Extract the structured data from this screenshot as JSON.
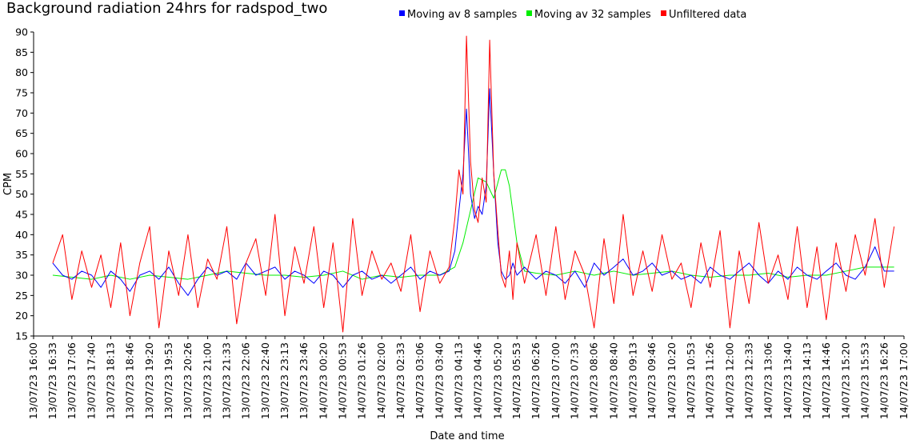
{
  "chart_data": {
    "type": "line",
    "title": "Background radiation 24hrs for radspod_two",
    "xlabel": "Date and time",
    "ylabel": "CPM",
    "ylim": [
      15,
      90
    ],
    "yticks": [
      15,
      20,
      25,
      30,
      35,
      40,
      45,
      50,
      55,
      60,
      65,
      70,
      75,
      80,
      85,
      90
    ],
    "xlim": [
      "13/07/23 16:00",
      "14/07/23 17:00"
    ],
    "xtick_labels": [
      "13/07/23 16:00",
      "13/07/23 16:33",
      "13/07/23 17:06",
      "13/07/23 17:40",
      "13/07/23 18:13",
      "13/07/23 18:46",
      "13/07/23 19:20",
      "13/07/23 19:53",
      "13/07/23 20:26",
      "13/07/23 21:00",
      "13/07/23 21:33",
      "13/07/23 22:06",
      "13/07/23 22:40",
      "13/07/23 23:13",
      "13/07/23 23:46",
      "14/07/23 00:20",
      "14/07/23 00:53",
      "14/07/23 01:26",
      "14/07/23 02:00",
      "14/07/23 02:33",
      "14/07/23 03:06",
      "14/07/23 03:40",
      "14/07/23 04:13",
      "14/07/23 04:46",
      "14/07/23 05:20",
      "14/07/23 05:53",
      "14/07/23 06:26",
      "14/07/23 07:00",
      "14/07/23 07:33",
      "14/07/23 08:06",
      "14/07/23 08:40",
      "14/07/23 09:13",
      "14/07/23 09:46",
      "14/07/23 10:20",
      "14/07/23 10:53",
      "14/07/23 11:26",
      "14/07/23 12:00",
      "14/07/23 12:33",
      "14/07/23 13:06",
      "14/07/23 13:40",
      "14/07/23 14:13",
      "14/07/23 14:46",
      "14/07/23 15:20",
      "14/07/23 15:53",
      "14/07/23 16:26",
      "14/07/23 17:00"
    ],
    "legend_position": "top",
    "grid": false,
    "series": [
      {
        "name": "Unfiltered data",
        "color": "#ff0000",
        "x": [
          "13/07/23 16:33",
          "13/07/23 16:50",
          "13/07/23 17:06",
          "13/07/23 17:23",
          "13/07/23 17:40",
          "13/07/23 17:56",
          "13/07/23 18:13",
          "13/07/23 18:30",
          "13/07/23 18:46",
          "13/07/23 19:03",
          "13/07/23 19:20",
          "13/07/23 19:36",
          "13/07/23 19:53",
          "13/07/23 20:10",
          "13/07/23 20:26",
          "13/07/23 20:43",
          "13/07/23 21:00",
          "13/07/23 21:16",
          "13/07/23 21:33",
          "13/07/23 21:50",
          "13/07/23 22:06",
          "13/07/23 22:23",
          "13/07/23 22:40",
          "13/07/23 22:56",
          "13/07/23 23:13",
          "13/07/23 23:30",
          "13/07/23 23:46",
          "14/07/23 00:03",
          "14/07/23 00:20",
          "14/07/23 00:36",
          "14/07/23 00:53",
          "14/07/23 01:10",
          "14/07/23 01:26",
          "14/07/23 01:43",
          "14/07/23 02:00",
          "14/07/23 02:16",
          "14/07/23 02:33",
          "14/07/23 02:50",
          "14/07/23 03:06",
          "14/07/23 03:23",
          "14/07/23 03:40",
          "14/07/23 03:56",
          "14/07/23 04:06",
          "14/07/23 04:13",
          "14/07/23 04:20",
          "14/07/23 04:26",
          "14/07/23 04:33",
          "14/07/23 04:40",
          "14/07/23 04:46",
          "14/07/23 04:53",
          "14/07/23 05:00",
          "14/07/23 05:06",
          "14/07/23 05:13",
          "14/07/23 05:20",
          "14/07/23 05:26",
          "14/07/23 05:33",
          "14/07/23 05:40",
          "14/07/23 05:46",
          "14/07/23 05:53",
          "14/07/23 06:06",
          "14/07/23 06:26",
          "14/07/23 06:43",
          "14/07/23 07:00",
          "14/07/23 07:16",
          "14/07/23 07:33",
          "14/07/23 07:50",
          "14/07/23 08:06",
          "14/07/23 08:23",
          "14/07/23 08:40",
          "14/07/23 08:56",
          "14/07/23 09:13",
          "14/07/23 09:30",
          "14/07/23 09:46",
          "14/07/23 10:03",
          "14/07/23 10:20",
          "14/07/23 10:36",
          "14/07/23 10:53",
          "14/07/23 11:10",
          "14/07/23 11:26",
          "14/07/23 11:43",
          "14/07/23 12:00",
          "14/07/23 12:16",
          "14/07/23 12:33",
          "14/07/23 12:50",
          "14/07/23 13:06",
          "14/07/23 13:23",
          "14/07/23 13:40",
          "14/07/23 13:56",
          "14/07/23 14:13",
          "14/07/23 14:30",
          "14/07/23 14:46",
          "14/07/23 15:03",
          "14/07/23 15:20",
          "14/07/23 15:36",
          "14/07/23 15:53",
          "14/07/23 16:10",
          "14/07/23 16:26",
          "14/07/23 16:43"
        ],
        "y": [
          33,
          40,
          24,
          36,
          27,
          35,
          22,
          38,
          20,
          33,
          42,
          17,
          36,
          25,
          40,
          22,
          34,
          29,
          42,
          18,
          33,
          39,
          25,
          45,
          20,
          37,
          28,
          42,
          22,
          38,
          16,
          44,
          25,
          36,
          29,
          33,
          26,
          40,
          21,
          36,
          28,
          32,
          44,
          56,
          50,
          89,
          58,
          46,
          43,
          54,
          48,
          88,
          55,
          41,
          30,
          27,
          36,
          24,
          38,
          28,
          40,
          25,
          42,
          24,
          36,
          30,
          17,
          39,
          23,
          45,
          25,
          36,
          26,
          40,
          29,
          33,
          22,
          38,
          27,
          41,
          17,
          36,
          23,
          43,
          28,
          35,
          24,
          42,
          22,
          37,
          19,
          38,
          26,
          40,
          30,
          44,
          27,
          42
        ]
      },
      {
        "name": "Moving av 8 samples",
        "color": "#0000ff",
        "x": [
          "13/07/23 16:33",
          "13/07/23 16:50",
          "13/07/23 17:06",
          "13/07/23 17:23",
          "13/07/23 17:40",
          "13/07/23 17:56",
          "13/07/23 18:13",
          "13/07/23 18:30",
          "13/07/23 18:46",
          "13/07/23 19:03",
          "13/07/23 19:20",
          "13/07/23 19:36",
          "13/07/23 19:53",
          "13/07/23 20:10",
          "13/07/23 20:26",
          "13/07/23 20:43",
          "13/07/23 21:00",
          "13/07/23 21:16",
          "13/07/23 21:33",
          "13/07/23 21:50",
          "13/07/23 22:06",
          "13/07/23 22:23",
          "13/07/23 22:40",
          "13/07/23 22:56",
          "13/07/23 23:13",
          "13/07/23 23:30",
          "13/07/23 23:46",
          "14/07/23 00:03",
          "14/07/23 00:20",
          "14/07/23 00:36",
          "14/07/23 00:53",
          "14/07/23 01:10",
          "14/07/23 01:26",
          "14/07/23 01:43",
          "14/07/23 02:00",
          "14/07/23 02:16",
          "14/07/23 02:33",
          "14/07/23 02:50",
          "14/07/23 03:06",
          "14/07/23 03:23",
          "14/07/23 03:40",
          "14/07/23 03:56",
          "14/07/23 04:06",
          "14/07/23 04:13",
          "14/07/23 04:20",
          "14/07/23 04:26",
          "14/07/23 04:33",
          "14/07/23 04:40",
          "14/07/23 04:46",
          "14/07/23 04:53",
          "14/07/23 05:00",
          "14/07/23 05:06",
          "14/07/23 05:13",
          "14/07/23 05:20",
          "14/07/23 05:26",
          "14/07/23 05:33",
          "14/07/23 05:40",
          "14/07/23 05:46",
          "14/07/23 05:53",
          "14/07/23 06:06",
          "14/07/23 06:26",
          "14/07/23 06:43",
          "14/07/23 07:00",
          "14/07/23 07:16",
          "14/07/23 07:33",
          "14/07/23 07:50",
          "14/07/23 08:06",
          "14/07/23 08:23",
          "14/07/23 08:40",
          "14/07/23 08:56",
          "14/07/23 09:13",
          "14/07/23 09:30",
          "14/07/23 09:46",
          "14/07/23 10:03",
          "14/07/23 10:20",
          "14/07/23 10:36",
          "14/07/23 10:53",
          "14/07/23 11:10",
          "14/07/23 11:26",
          "14/07/23 11:43",
          "14/07/23 12:00",
          "14/07/23 12:16",
          "14/07/23 12:33",
          "14/07/23 12:50",
          "14/07/23 13:06",
          "14/07/23 13:23",
          "14/07/23 13:40",
          "14/07/23 13:56",
          "14/07/23 14:13",
          "14/07/23 14:30",
          "14/07/23 14:46",
          "14/07/23 15:03",
          "14/07/23 15:20",
          "14/07/23 15:36",
          "14/07/23 15:53",
          "14/07/23 16:10",
          "14/07/23 16:26",
          "14/07/23 16:43"
        ],
        "y": [
          33,
          30,
          29,
          31,
          30,
          27,
          31,
          29,
          26,
          30,
          31,
          29,
          32,
          28,
          25,
          29,
          32,
          30,
          31,
          29,
          33,
          30,
          31,
          32,
          29,
          31,
          30,
          28,
          31,
          30,
          27,
          30,
          31,
          29,
          30,
          28,
          30,
          32,
          29,
          31,
          30,
          31,
          36,
          46,
          55,
          71,
          50,
          44,
          47,
          45,
          52,
          76,
          55,
          38,
          31,
          29,
          30,
          33,
          30,
          32,
          29,
          31,
          30,
          28,
          31,
          27,
          33,
          30,
          32,
          34,
          30,
          31,
          33,
          30,
          31,
          29,
          30,
          28,
          32,
          30,
          29,
          31,
          33,
          30,
          28,
          31,
          29,
          32,
          30,
          29,
          31,
          33,
          30,
          29,
          32,
          37,
          31,
          31
        ]
      },
      {
        "name": "Moving av 32 samples",
        "color": "#00ee00",
        "x": [
          "13/07/23 16:33",
          "13/07/23 17:06",
          "13/07/23 17:40",
          "13/07/23 18:13",
          "13/07/23 18:46",
          "13/07/23 19:20",
          "13/07/23 19:53",
          "13/07/23 20:26",
          "13/07/23 21:00",
          "13/07/23 21:33",
          "13/07/23 22:06",
          "13/07/23 22:40",
          "13/07/23 23:13",
          "13/07/23 23:46",
          "14/07/23 00:20",
          "14/07/23 00:53",
          "14/07/23 01:26",
          "14/07/23 02:00",
          "14/07/23 02:33",
          "14/07/23 03:06",
          "14/07/23 03:40",
          "14/07/23 04:06",
          "14/07/23 04:20",
          "14/07/23 04:33",
          "14/07/23 04:46",
          "14/07/23 05:00",
          "14/07/23 05:13",
          "14/07/23 05:26",
          "14/07/23 05:33",
          "14/07/23 05:40",
          "14/07/23 05:53",
          "14/07/23 06:06",
          "14/07/23 06:26",
          "14/07/23 07:00",
          "14/07/23 07:33",
          "14/07/23 08:06",
          "14/07/23 08:40",
          "14/07/23 09:13",
          "14/07/23 09:46",
          "14/07/23 10:20",
          "14/07/23 10:53",
          "14/07/23 11:26",
          "14/07/23 12:00",
          "14/07/23 12:33",
          "14/07/23 13:06",
          "14/07/23 13:40",
          "14/07/23 14:13",
          "14/07/23 14:46",
          "14/07/23 15:20",
          "14/07/23 15:53",
          "14/07/23 16:26",
          "14/07/23 16:43"
        ],
        "y": [
          30,
          29.5,
          29,
          30,
          29,
          30,
          29.5,
          29,
          30,
          31,
          30.5,
          30,
          30,
          29.5,
          30,
          31,
          29,
          30,
          29.5,
          30,
          30,
          32,
          38,
          46,
          54,
          53,
          49,
          56,
          56,
          52,
          38,
          31,
          30.5,
          30,
          31,
          30,
          31,
          30,
          30.5,
          31,
          30,
          29.5,
          30,
          30,
          30.5,
          29.5,
          30,
          30,
          31,
          32,
          32,
          32
        ]
      }
    ]
  }
}
